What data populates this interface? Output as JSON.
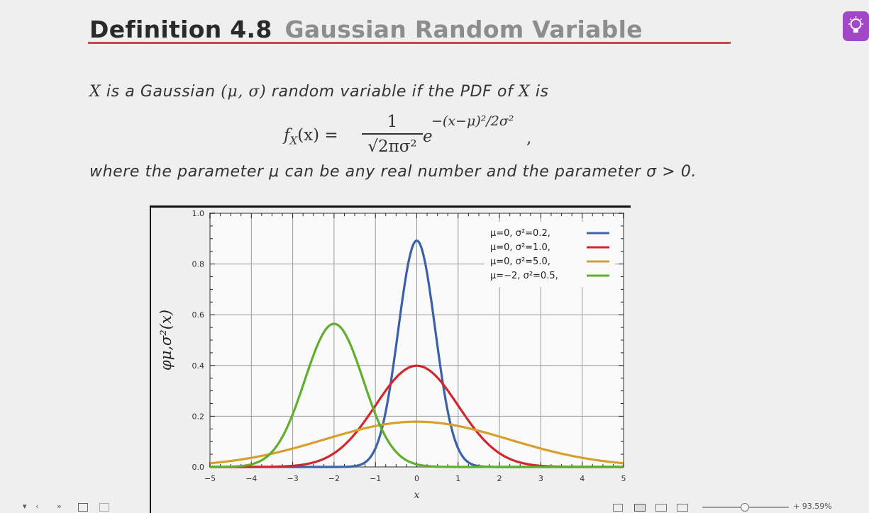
{
  "title": {
    "number": "Definition 4.8",
    "name": "Gaussian Random Variable"
  },
  "intro": {
    "pre": "is a Gaussian",
    "params": "(μ, σ)",
    "post": "random variable if the PDF of",
    "end": "is",
    "var": "X"
  },
  "formula": {
    "lhs": "f",
    "lhs_sub": "X",
    "lhs_arg": "(x) =",
    "numerator": "1",
    "denominator": "√2πσ²",
    "exponent": "−(x−μ)²/2σ²",
    "base": "e",
    "trail": ","
  },
  "condition": "where the parameter μ can be any real number and the parameter σ > 0.",
  "icons": {
    "bulb": "lightbulb-icon"
  },
  "chart_data": {
    "type": "line",
    "ylabel": "φμ,σ²(x)",
    "xlabel": "x",
    "xlim": [
      -5,
      5
    ],
    "ylim": [
      0,
      1.0
    ],
    "x_ticks": [
      "−5",
      "−4",
      "−3",
      "−2",
      "−1",
      "0",
      "1",
      "2",
      "3",
      "4",
      "5"
    ],
    "y_ticks": [
      "0.0",
      "0.2",
      "0.4",
      "0.6",
      "0.8",
      "1.0"
    ],
    "grid": true,
    "legend_position": "top-right",
    "series": [
      {
        "name": "μ=0,   σ²=0.2,",
        "mu": 0,
        "var": 0.2,
        "color": "#3a62a8"
      },
      {
        "name": "μ=0,   σ²=1.0,",
        "mu": 0,
        "var": 1.0,
        "color": "#d2262e"
      },
      {
        "name": "μ=0,   σ²=5.0,",
        "mu": 0,
        "var": 5.0,
        "color": "#d6a02a"
      },
      {
        "name": "μ=−2, σ²=0.5,",
        "mu": -2,
        "var": 0.5,
        "color": "#5fae2e"
      }
    ]
  },
  "statusbar": {
    "nav_left": "▾",
    "nav_prev": "‹",
    "nav_next": "›",
    "nav_skip": "»",
    "zoom": "+ 93.59%"
  }
}
